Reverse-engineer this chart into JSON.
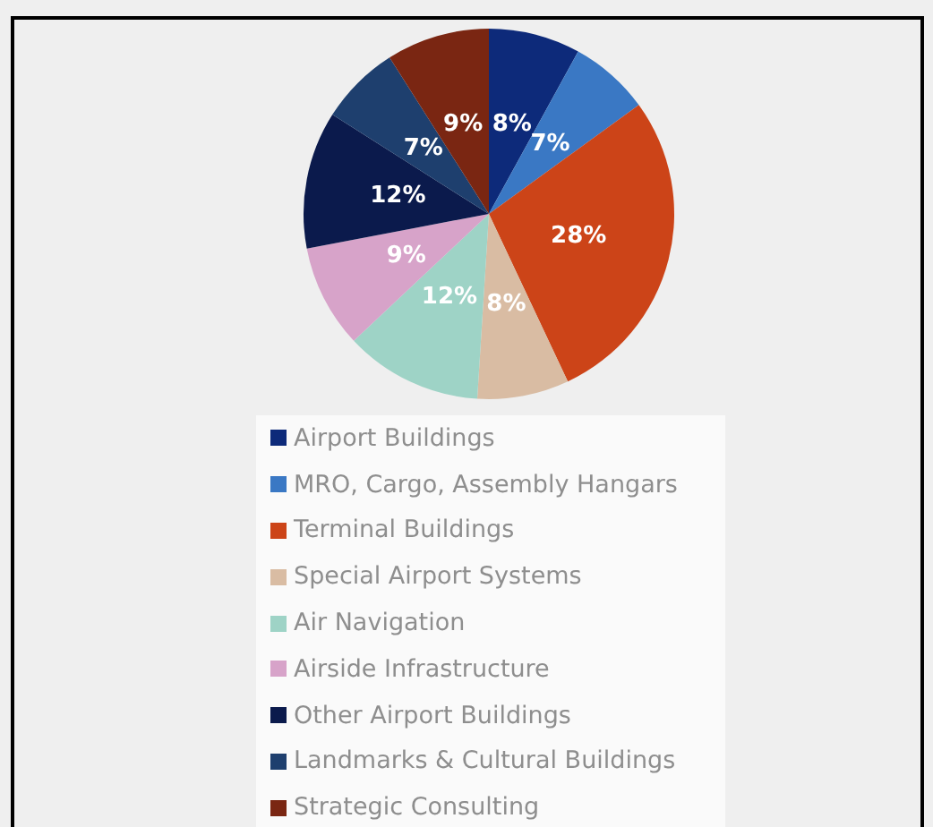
{
  "chart_data": {
    "type": "pie",
    "categories": [
      "Airport Buildings",
      "MRO, Cargo, Assembly Hangars",
      "Terminal Buildings",
      "Special Airport Systems",
      "Air Navigation",
      "Airside Infrastructure",
      "Other Airport Buildings",
      "Landmarks & Cultural Buildings",
      "Strategic Consulting"
    ],
    "values": [
      8,
      7,
      28,
      8,
      12,
      9,
      12,
      7,
      9
    ],
    "colors": [
      "#0d2a7a",
      "#3a78c4",
      "#cc4418",
      "#d9bca3",
      "#9ed3c6",
      "#d7a3c9",
      "#0b1a4c",
      "#1e3f6e",
      "#7a2612"
    ],
    "value_labels": [
      "8%",
      "7%",
      "28%",
      "8%",
      "12%",
      "9%",
      "12%",
      "7%",
      "9%"
    ],
    "legend": "bottom"
  }
}
